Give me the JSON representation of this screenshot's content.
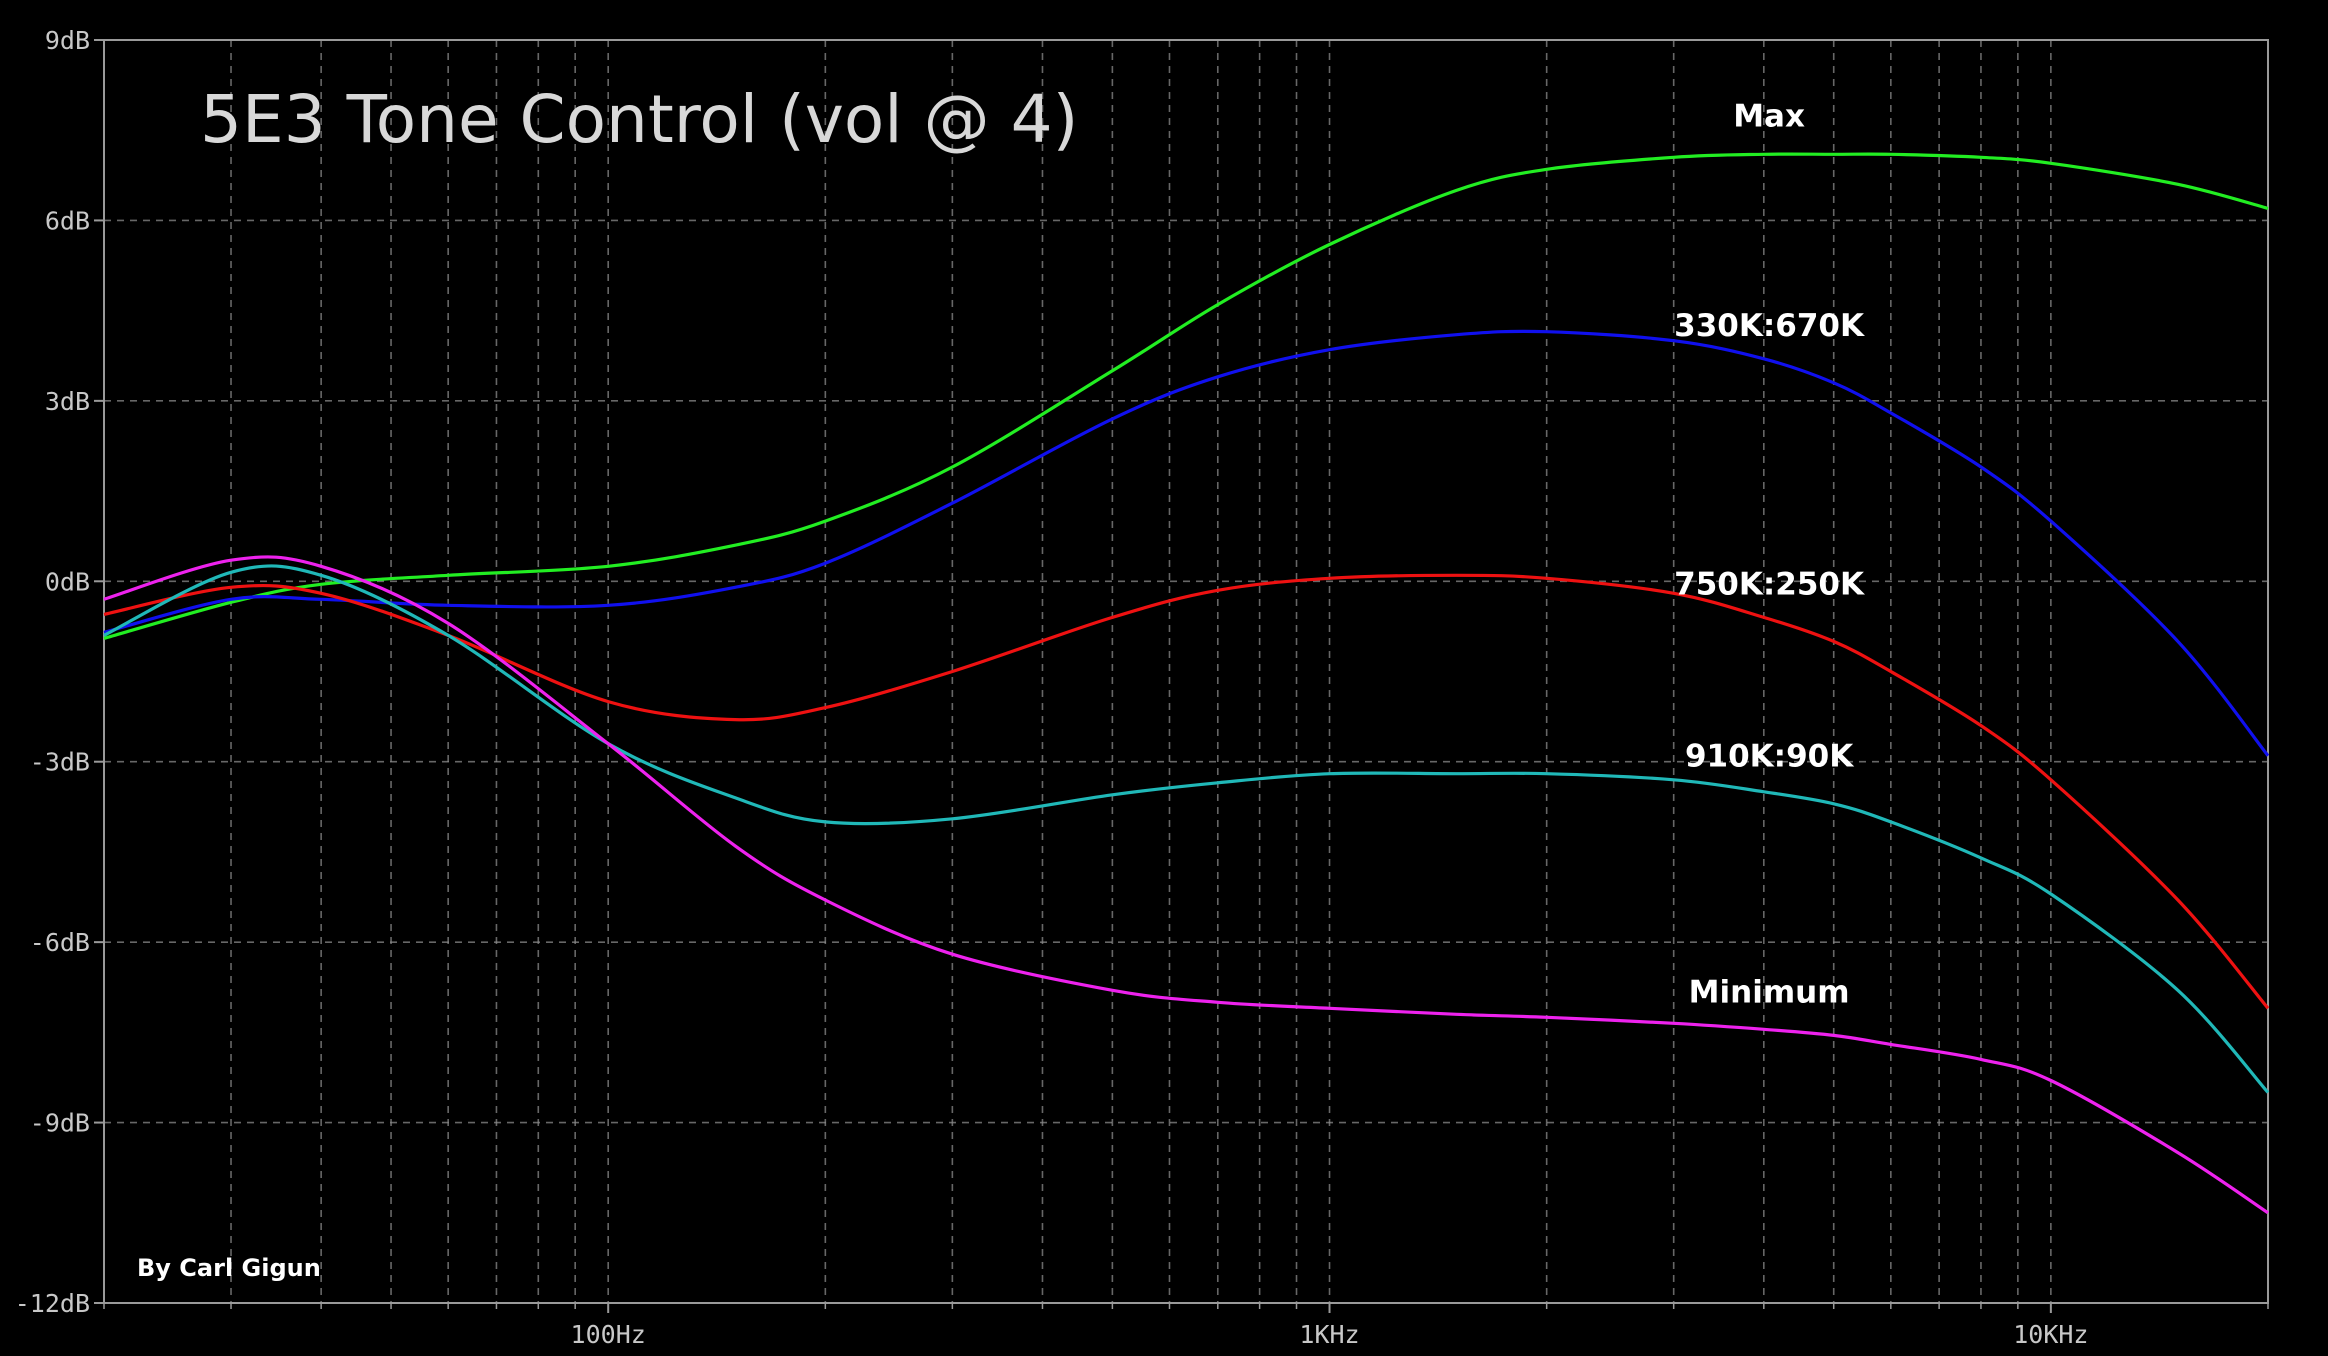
{
  "chart_data": {
    "type": "line",
    "title": "5E3 Tone Control (vol @ 4)",
    "credit": "By Carl Gigun",
    "x_scale": "log",
    "xlim": [
      20,
      20000
    ],
    "ylim": [
      -12,
      9
    ],
    "grid": true,
    "y_ticks": [
      {
        "value": 9,
        "label": "9dB"
      },
      {
        "value": 6,
        "label": "6dB"
      },
      {
        "value": 3,
        "label": "3dB"
      },
      {
        "value": 0,
        "label": "0dB"
      },
      {
        "value": -3,
        "label": "-3dB"
      },
      {
        "value": -6,
        "label": "-6dB"
      },
      {
        "value": -9,
        "label": "-9dB"
      },
      {
        "value": -12,
        "label": "-12dB"
      }
    ],
    "x_ticks": [
      {
        "value": 100,
        "label": "100Hz"
      },
      {
        "value": 1000,
        "label": "1KHz"
      },
      {
        "value": 10000,
        "label": "10KHz"
      }
    ],
    "x": [
      20,
      30,
      40,
      60,
      100,
      150,
      200,
      300,
      500,
      700,
      1000,
      1500,
      2000,
      3000,
      4000,
      5000,
      6000,
      8000,
      10000,
      15000,
      20000
    ],
    "series": [
      {
        "name": "Max",
        "color": "#22ee22",
        "values": [
          -0.95,
          -0.35,
          -0.05,
          0.1,
          0.25,
          0.6,
          1.0,
          1.9,
          3.5,
          4.6,
          5.6,
          6.5,
          6.85,
          7.05,
          7.1,
          7.1,
          7.1,
          7.05,
          6.95,
          6.6,
          6.2
        ]
      },
      {
        "name": "330K:670K",
        "color": "#1010ee",
        "values": [
          -0.85,
          -0.3,
          -0.3,
          -0.4,
          -0.4,
          -0.1,
          0.3,
          1.3,
          2.7,
          3.4,
          3.85,
          4.1,
          4.15,
          4.0,
          3.7,
          3.3,
          2.8,
          1.9,
          1.0,
          -1.0,
          -2.9
        ]
      },
      {
        "name": "750K:250K",
        "color": "#ee1111",
        "values": [
          -0.55,
          -0.1,
          -0.2,
          -0.9,
          -2.0,
          -2.3,
          -2.1,
          -1.5,
          -0.6,
          -0.15,
          0.05,
          0.1,
          0.05,
          -0.2,
          -0.6,
          -1.0,
          -1.5,
          -2.4,
          -3.3,
          -5.3,
          -7.1
        ]
      },
      {
        "name": "910K:90K",
        "color": "#20b8b8",
        "values": [
          -0.9,
          0.15,
          0.1,
          -0.9,
          -2.7,
          -3.6,
          -4.0,
          -3.95,
          -3.55,
          -3.35,
          -3.2,
          -3.2,
          -3.2,
          -3.3,
          -3.5,
          -3.7,
          -4.0,
          -4.6,
          -5.2,
          -6.8,
          -8.5
        ]
      },
      {
        "name": "Minimum",
        "color": "#ee22ee",
        "values": [
          -0.3,
          0.35,
          0.25,
          -0.7,
          -2.7,
          -4.4,
          -5.3,
          -6.2,
          -6.8,
          -7.0,
          -7.1,
          -7.2,
          -7.25,
          -7.35,
          -7.45,
          -7.55,
          -7.7,
          -7.95,
          -8.3,
          -9.5,
          -10.5
        ]
      }
    ]
  }
}
